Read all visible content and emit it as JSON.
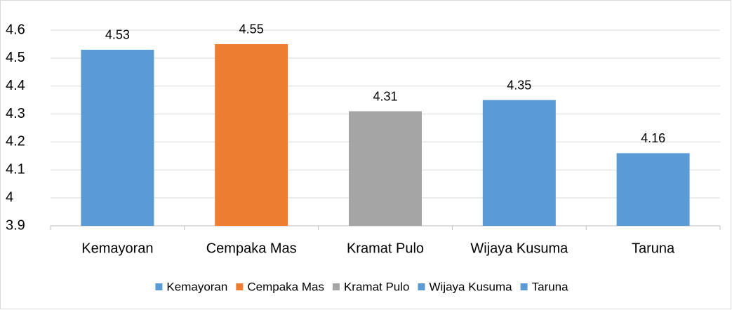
{
  "chart_data": {
    "type": "bar",
    "categories": [
      "Kemayoran",
      "Cempaka Mas",
      "Kramat Pulo",
      "Wijaya Kusuma",
      "Taruna"
    ],
    "values": [
      4.53,
      4.55,
      4.31,
      4.35,
      4.16
    ],
    "colors": [
      "#5b9bd5",
      "#ed7d31",
      "#a5a5a5",
      "#5b9bd5",
      "#5b9bd5"
    ],
    "ylim": [
      3.9,
      4.6
    ],
    "yticks": [
      3.9,
      4,
      4.1,
      4.2,
      4.3,
      4.4,
      4.5,
      4.6
    ],
    "grid": true,
    "legend": "bottom"
  }
}
